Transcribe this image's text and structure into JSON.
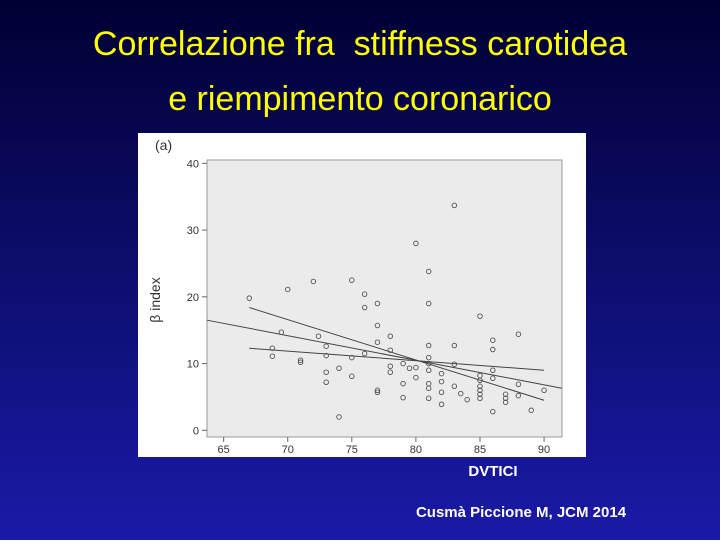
{
  "chart_data": {
    "type": "scatter",
    "title": [
      "Correlazione fra  stiffness carotidea",
      "e riempimento coronarico"
    ],
    "panel_label": "(a)",
    "ylabel": "β index",
    "xlabel": "DVTICI",
    "caption": "Cusmà Piccione M, JCM 2014",
    "x": [
      67,
      70,
      72,
      75,
      76,
      77,
      80,
      81,
      81,
      83,
      85,
      69.5,
      68.8,
      68.8,
      71,
      71,
      72.4,
      73,
      73,
      73,
      73,
      74,
      74,
      75,
      75,
      76,
      76,
      77,
      77,
      77,
      77,
      78,
      78,
      78,
      78,
      79,
      79,
      79,
      79.5,
      80,
      80,
      81,
      81,
      81,
      81,
      81,
      81,
      81,
      82,
      82,
      82,
      82,
      83,
      83,
      83,
      83.5,
      84,
      85,
      85,
      85,
      85,
      85,
      85,
      86,
      86,
      86,
      86,
      86,
      87,
      87,
      87,
      88,
      88,
      88,
      89,
      90
    ],
    "values": [
      19.8,
      21.1,
      22.3,
      22.5,
      20.4,
      19.0,
      28.0,
      23.8,
      19.0,
      33.7,
      17.1,
      14.7,
      12.3,
      11.1,
      10.5,
      10.2,
      14.1,
      12.6,
      11.2,
      8.7,
      7.2,
      9.3,
      2.0,
      10.9,
      8.1,
      11.5,
      18.4,
      15.7,
      13.2,
      6.0,
      5.7,
      14.1,
      12.0,
      9.6,
      8.7,
      10.0,
      7.0,
      4.9,
      9.3,
      9.4,
      7.9,
      12.7,
      10.9,
      10.0,
      9.0,
      7.0,
      6.3,
      4.8,
      8.5,
      7.3,
      5.7,
      3.9,
      12.7,
      9.9,
      6.6,
      5.5,
      4.6,
      8.2,
      7.5,
      6.6,
      6.0,
      5.4,
      4.8,
      13.5,
      12.1,
      9.0,
      7.8,
      2.8,
      5.4,
      4.8,
      4.2,
      14.4,
      6.9,
      5.2,
      3.0,
      6.0
    ],
    "fit_lines": [
      {
        "x": [
          63.7,
          91.4
        ],
        "values": [
          16.5,
          6.3
        ]
      },
      {
        "x": [
          67,
          90
        ],
        "values": [
          18.4,
          4.5
        ]
      },
      {
        "x": [
          67,
          90
        ],
        "values": [
          12.3,
          9.0
        ]
      }
    ],
    "xlim": [
      63.7,
      91.4
    ],
    "ylim": [
      -1,
      40.5
    ],
    "xticks": [
      65,
      70,
      75,
      80,
      85,
      90
    ],
    "yticks": [
      0,
      10,
      20,
      30,
      40
    ],
    "color": "#555555",
    "title_color": "#ffff00"
  }
}
